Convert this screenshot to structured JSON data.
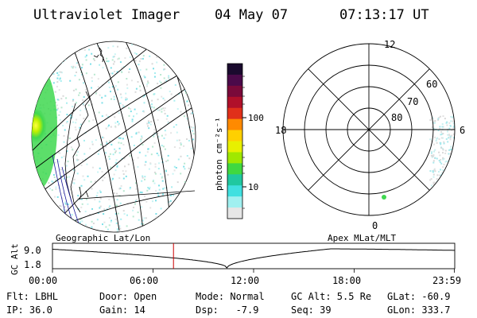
{
  "header": {
    "instrument": "Ultraviolet Imager",
    "date": "04 May 07",
    "time": "07:13:17 UT"
  },
  "colorbar": {
    "unit_label": "photon cm⁻²s⁻¹",
    "ticks": [
      "100",
      "10"
    ],
    "colors": [
      "#1a0a2e",
      "#4b0a4a",
      "#7a0a3a",
      "#b0102a",
      "#e0301a",
      "#ff8a00",
      "#ffd000",
      "#e8f000",
      "#a0e800",
      "#40d840",
      "#20c8a0",
      "#40e0e0",
      "#a0f0f0",
      "#e6e6e6"
    ]
  },
  "polar_plot": {
    "mlt_labels": {
      "top": "12",
      "left": "18",
      "right": "6",
      "bottom": "0"
    },
    "lat_labels": [
      "60",
      "70",
      "80"
    ]
  },
  "map_labels": {
    "left": "Geographic Lat/Lon",
    "right": "Apex MLat/MLT"
  },
  "timeline": {
    "axis_label": "GC Alt",
    "y_ticks": [
      "9.0",
      "1.8"
    ],
    "x_ticks": [
      "00:00",
      "06:00",
      "12:00",
      "18:00",
      "23:59"
    ],
    "current_time_hours": 7.22,
    "marker_color": "#cc0000"
  },
  "info": {
    "flt": "Flt: LBHL",
    "door": "Door: Open",
    "mode": "Mode: Normal",
    "gc_alt": "GC Alt: 5.5 Re",
    "glat": "GLat: -60.9",
    "ip": "IP: 36.0",
    "gain": "Gain: 14",
    "dsp": "Dsp:   -7.9",
    "seq": "Seq: 39",
    "glon": "GLon: 333.7"
  }
}
